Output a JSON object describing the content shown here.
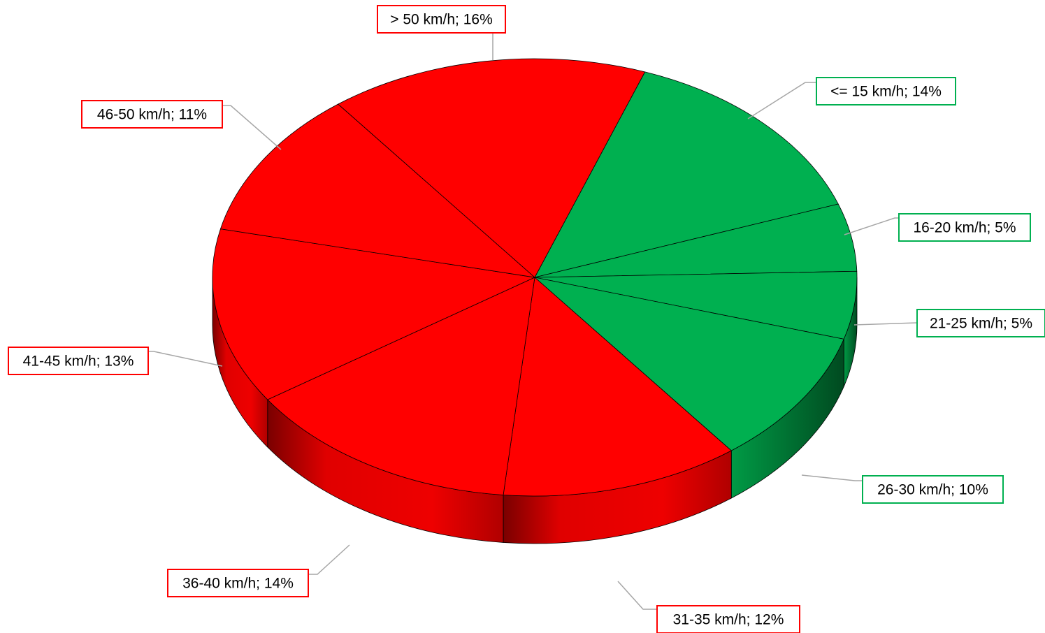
{
  "chart_data": {
    "type": "pie",
    "style": "3d",
    "title": "",
    "start_angle_deg": -70,
    "colors": {
      "red": "#FF0000",
      "green": "#00B050"
    },
    "slices": [
      {
        "category": "<= 15 km/h",
        "value": 14,
        "label": "<= 15 km/h; 14%",
        "color": "green"
      },
      {
        "category": "16-20 km/h",
        "value": 5,
        "label": "16-20 km/h; 5%",
        "color": "green"
      },
      {
        "category": "21-25 km/h",
        "value": 5,
        "label": "21-25 km/h; 5%",
        "color": "green"
      },
      {
        "category": "26-30 km/h",
        "value": 10,
        "label": "26-30 km/h; 10%",
        "color": "green"
      },
      {
        "category": "31-35 km/h",
        "value": 12,
        "label": "31-35 km/h; 12%",
        "color": "red"
      },
      {
        "category": "36-40 km/h",
        "value": 14,
        "label": "36-40 km/h; 14%",
        "color": "red"
      },
      {
        "category": "41-45 km/h",
        "value": 13,
        "label": "41-45 km/h; 13%",
        "color": "red"
      },
      {
        "category": "46-50 km/h",
        "value": 11,
        "label": "46-50 km/h; 11%",
        "color": "red"
      },
      {
        "category": "> 50 km/h",
        "value": 16,
        "label": "> 50 km/h; 16%",
        "color": "red"
      }
    ]
  }
}
